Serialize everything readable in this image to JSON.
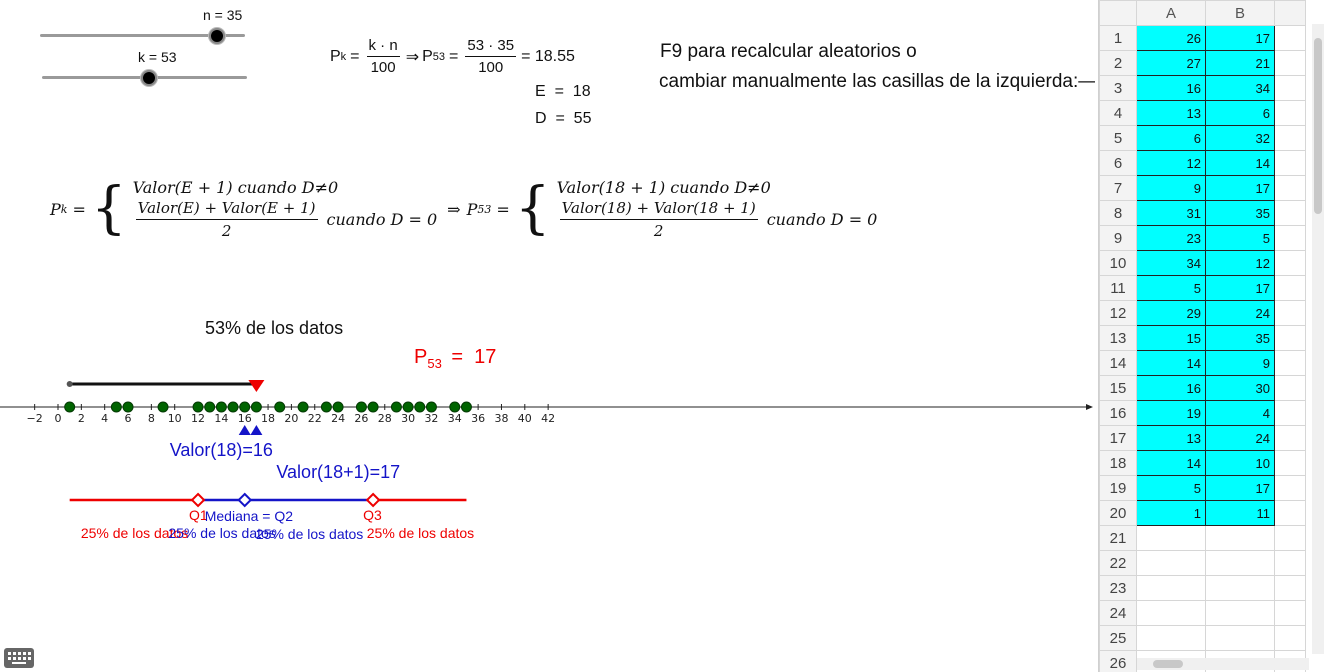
{
  "sliders": {
    "n": {
      "label": "n = 35",
      "value": 35
    },
    "k": {
      "label": "k = 53",
      "value": 53
    }
  },
  "formula_top": {
    "pk": "P",
    "pk_sub": "k",
    "eq": "=",
    "frac1_num": "k · n",
    "frac1_den": "100",
    "arrow": "⇒",
    "p53": "P",
    "p53_sub": "53",
    "frac2_num": "53 · 35",
    "frac2_den": "100",
    "result": "= 18.55",
    "e_line": "E  =  18",
    "d_line": "D  =  55"
  },
  "instructions": {
    "line1": "F9 para recalcular aleatorios o",
    "line2": "cambiar manualmente las casillas de la izquierda:—"
  },
  "piecewise": {
    "lhs": "P",
    "lhs_sub": "k",
    "eq": " = ",
    "case1": "Valor(E + 1) cuando D≠0",
    "case2_num": "Valor(E) + Valor(E + 1)",
    "case2_den": "2",
    "case2_tail": "cuando D = 0",
    "arrow": "⇒",
    "rhs": "P",
    "rhs_sub": "53",
    "rhs_case1": "Valor(18 + 1) cuando D≠0",
    "rhs_case2_num": "Valor(18) + Valor(18 + 1)",
    "rhs_case2_den": "2",
    "rhs_case2_tail": "cuando D = 0"
  },
  "number_line": {
    "percent_label": "53% de los datos",
    "p53_label": "P",
    "p53_sub": "53",
    "p53_value": "=  17",
    "p53_at": 17,
    "bar_start": 1,
    "ticks": [
      -2,
      0,
      2,
      4,
      6,
      8,
      10,
      12,
      14,
      16,
      18,
      20,
      22,
      24,
      26,
      28,
      30,
      32,
      34,
      36,
      38,
      40,
      42
    ],
    "tick_labels": [
      "−2",
      "0",
      "2",
      "4",
      "6",
      "8",
      "10",
      "12",
      "14",
      "16",
      "18",
      "20",
      "22",
      "24",
      "26",
      "28",
      "30",
      "32",
      "34",
      "36",
      "38",
      "40",
      "42"
    ],
    "points": [
      1,
      5,
      6,
      9,
      12,
      13,
      14,
      15,
      16,
      17,
      19,
      21,
      23,
      24,
      26,
      27,
      29,
      30,
      31,
      32,
      34,
      35
    ],
    "valor18_label": "Valor(18)=16",
    "valor18_at": 16,
    "valor19_label": "Valor(18+1)=17",
    "valor19_at": 17
  },
  "quartiles": {
    "min": 1,
    "q1": 12,
    "q2": 16,
    "q3": 27,
    "max": 35,
    "q1_label": "Q1",
    "q2_label": "Mediana = Q2",
    "q3_label": "Q3",
    "seg1_label": "25% de los datos",
    "seg2_label": "25% de los datos",
    "seg3_label": "25% de los datos",
    "seg4_label": "25% de los datos"
  },
  "colors": {
    "red": "#ee0000",
    "blue": "#1414c8",
    "point": "#006400",
    "cell": "#00ffff"
  },
  "spreadsheet": {
    "columns": [
      "A",
      "B",
      ""
    ],
    "rows": [
      {
        "n": "1",
        "a": "26",
        "b": "17"
      },
      {
        "n": "2",
        "a": "27",
        "b": "21"
      },
      {
        "n": "3",
        "a": "16",
        "b": "34"
      },
      {
        "n": "4",
        "a": "13",
        "b": "6"
      },
      {
        "n": "5",
        "a": "6",
        "b": "32"
      },
      {
        "n": "6",
        "a": "12",
        "b": "14"
      },
      {
        "n": "7",
        "a": "9",
        "b": "17"
      },
      {
        "n": "8",
        "a": "31",
        "b": "35"
      },
      {
        "n": "9",
        "a": "23",
        "b": "5"
      },
      {
        "n": "10",
        "a": "34",
        "b": "12"
      },
      {
        "n": "11",
        "a": "5",
        "b": "17"
      },
      {
        "n": "12",
        "a": "29",
        "b": "24"
      },
      {
        "n": "13",
        "a": "15",
        "b": "35"
      },
      {
        "n": "14",
        "a": "14",
        "b": "9"
      },
      {
        "n": "15",
        "a": "16",
        "b": "30"
      },
      {
        "n": "16",
        "a": "19",
        "b": "4"
      },
      {
        "n": "17",
        "a": "13",
        "b": "24"
      },
      {
        "n": "18",
        "a": "14",
        "b": "10"
      },
      {
        "n": "19",
        "a": "5",
        "b": "17"
      },
      {
        "n": "20",
        "a": "1",
        "b": "11"
      },
      {
        "n": "21",
        "a": "",
        "b": ""
      },
      {
        "n": "22",
        "a": "",
        "b": ""
      },
      {
        "n": "23",
        "a": "",
        "b": ""
      },
      {
        "n": "24",
        "a": "",
        "b": ""
      },
      {
        "n": "25",
        "a": "",
        "b": ""
      },
      {
        "n": "26",
        "a": "",
        "b": ""
      }
    ]
  },
  "icons": {
    "keyboard": "keyboard-icon"
  }
}
